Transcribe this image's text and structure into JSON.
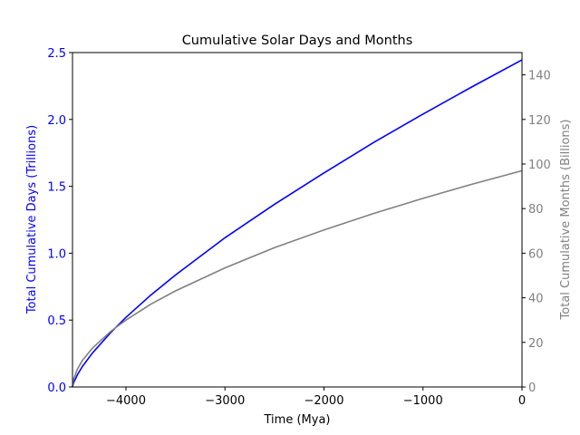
{
  "chart_data": {
    "type": "line",
    "title": "Cumulative Solar Days and Months",
    "xlabel": "Time (Mya)",
    "ylabel_left": "Total Cumulative Days (Trillions)",
    "ylabel_right": "Total Cumulative Months (Billions)",
    "xlim": [
      -4540,
      0
    ],
    "ylim_left": [
      0,
      2.5
    ],
    "ylim_right": [
      0,
      150
    ],
    "grid": false,
    "x_ticks": [
      -4000,
      -3000,
      -2000,
      -1000,
      0
    ],
    "x_tick_labels": [
      "−4000",
      "−3000",
      "−2000",
      "−1000",
      "0"
    ],
    "y_left_ticks": [
      0,
      0.5,
      1.0,
      1.5,
      2.0,
      2.5
    ],
    "y_left_tick_labels": [
      "0.0",
      "0.5",
      "1.0",
      "1.5",
      "2.0",
      "2.5"
    ],
    "y_right_ticks": [
      0,
      20,
      40,
      60,
      80,
      100,
      120,
      140
    ],
    "y_right_tick_labels": [
      "0",
      "20",
      "40",
      "60",
      "80",
      "100",
      "120",
      "140"
    ],
    "x": [
      -4540,
      -4530,
      -4490,
      -4440,
      -4340,
      -4150,
      -4000,
      -3750,
      -3500,
      -3000,
      -2500,
      -2000,
      -1500,
      -1000,
      -500,
      0
    ],
    "series": [
      {
        "name": "Total Cumulative Days (Trillions)",
        "axis": "left",
        "color": "#0000ff",
        "values": [
          0,
          0.029,
          0.092,
          0.153,
          0.253,
          0.41,
          0.52,
          0.686,
          0.837,
          1.115,
          1.366,
          1.6,
          1.827,
          2.04,
          2.246,
          2.445
        ]
      },
      {
        "name": "Total Cumulative Months (Billions)",
        "axis": "right",
        "color": "#808080",
        "values": [
          0,
          3.4,
          8.1,
          11.9,
          17.4,
          25.1,
          30.0,
          37.1,
          43.1,
          53.4,
          62.5,
          70.4,
          77.8,
          84.6,
          91.0,
          97.0
        ]
      }
    ]
  }
}
